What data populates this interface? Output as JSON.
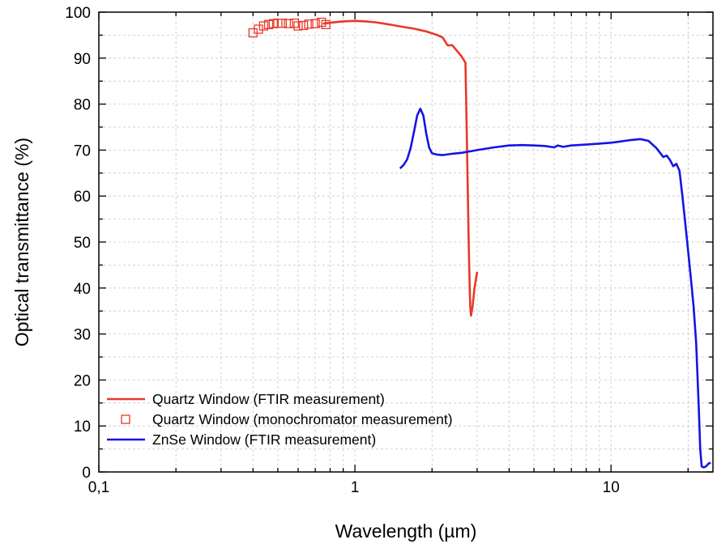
{
  "chart_data": {
    "type": "line",
    "xlabel": "Wavelength (µm)",
    "ylabel": "Optical transmittance (%)",
    "x_scale": "log",
    "xlim": [
      0.1,
      25
    ],
    "ylim": [
      0,
      100
    ],
    "x_ticks": [
      {
        "value": 0.1,
        "label": "0,1"
      },
      {
        "value": 1,
        "label": "1"
      },
      {
        "value": 10,
        "label": "10"
      }
    ],
    "y_ticks": [
      0,
      10,
      20,
      30,
      40,
      50,
      60,
      70,
      80,
      90,
      100
    ],
    "grid": true,
    "legend_position": "bottom-left",
    "series": [
      {
        "name": "Quartz Window (FTIR measurement)",
        "style": "line",
        "color": "#e8382a",
        "points": [
          [
            0.75,
            97.5
          ],
          [
            0.8,
            97.7
          ],
          [
            0.9,
            98.0
          ],
          [
            1.0,
            98.1
          ],
          [
            1.1,
            98.0
          ],
          [
            1.2,
            97.8
          ],
          [
            1.3,
            97.5
          ],
          [
            1.4,
            97.2
          ],
          [
            1.5,
            96.9
          ],
          [
            1.7,
            96.4
          ],
          [
            1.9,
            95.8
          ],
          [
            2.1,
            95.0
          ],
          [
            2.2,
            94.5
          ],
          [
            2.3,
            92.8
          ],
          [
            2.4,
            92.8
          ],
          [
            2.5,
            91.6
          ],
          [
            2.6,
            90.5
          ],
          [
            2.7,
            89.0
          ],
          [
            2.72,
            80.0
          ],
          [
            2.74,
            70.0
          ],
          [
            2.76,
            60.0
          ],
          [
            2.78,
            50.0
          ],
          [
            2.8,
            42.0
          ],
          [
            2.82,
            36.0
          ],
          [
            2.84,
            34.0
          ],
          [
            2.88,
            36.0
          ],
          [
            2.93,
            40.0
          ],
          [
            3.0,
            43.5
          ]
        ]
      },
      {
        "name": "Quartz Window (monochromator measurement)",
        "style": "marker",
        "color": "#e8382a",
        "points": [
          [
            0.4,
            95.5
          ],
          [
            0.42,
            96.3
          ],
          [
            0.44,
            97.0
          ],
          [
            0.46,
            97.3
          ],
          [
            0.48,
            97.5
          ],
          [
            0.5,
            97.6
          ],
          [
            0.52,
            97.6
          ],
          [
            0.55,
            97.5
          ],
          [
            0.58,
            97.6
          ],
          [
            0.6,
            97.0
          ],
          [
            0.63,
            97.1
          ],
          [
            0.66,
            97.4
          ],
          [
            0.7,
            97.5
          ],
          [
            0.74,
            97.8
          ],
          [
            0.77,
            97.3
          ]
        ]
      },
      {
        "name": "ZnSe Window (FTIR measurement)",
        "style": "line",
        "color": "#1414e6",
        "points": [
          [
            1.5,
            66.0
          ],
          [
            1.55,
            66.8
          ],
          [
            1.6,
            68.0
          ],
          [
            1.65,
            70.5
          ],
          [
            1.7,
            74.0
          ],
          [
            1.75,
            77.5
          ],
          [
            1.8,
            79.0
          ],
          [
            1.85,
            77.5
          ],
          [
            1.9,
            73.5
          ],
          [
            1.95,
            70.5
          ],
          [
            2.0,
            69.3
          ],
          [
            2.1,
            69.0
          ],
          [
            2.2,
            68.9
          ],
          [
            2.4,
            69.2
          ],
          [
            2.6,
            69.4
          ],
          [
            2.8,
            69.7
          ],
          [
            3.0,
            70.0
          ],
          [
            3.5,
            70.6
          ],
          [
            4.0,
            71.0
          ],
          [
            4.5,
            71.1
          ],
          [
            5.0,
            71.0
          ],
          [
            5.5,
            70.9
          ],
          [
            6.0,
            70.6
          ],
          [
            6.2,
            71.0
          ],
          [
            6.5,
            70.7
          ],
          [
            7.0,
            71.0
          ],
          [
            8.0,
            71.2
          ],
          [
            9.0,
            71.4
          ],
          [
            10.0,
            71.6
          ],
          [
            11.0,
            71.9
          ],
          [
            12.0,
            72.2
          ],
          [
            13.0,
            72.4
          ],
          [
            14.0,
            72.0
          ],
          [
            15.0,
            70.5
          ],
          [
            16.0,
            68.5
          ],
          [
            16.5,
            68.8
          ],
          [
            17.0,
            67.8
          ],
          [
            17.5,
            66.5
          ],
          [
            18.0,
            67.0
          ],
          [
            18.5,
            65.5
          ],
          [
            19.0,
            60.0
          ],
          [
            19.5,
            54.0
          ],
          [
            20.0,
            48.0
          ],
          [
            20.5,
            42.0
          ],
          [
            21.0,
            36.0
          ],
          [
            21.5,
            28.0
          ],
          [
            22.0,
            14.0
          ],
          [
            22.3,
            5.0
          ],
          [
            22.6,
            1.2
          ],
          [
            23.0,
            1.0
          ],
          [
            23.5,
            1.2
          ],
          [
            24.0,
            1.8
          ],
          [
            24.5,
            2.0
          ]
        ]
      }
    ]
  }
}
